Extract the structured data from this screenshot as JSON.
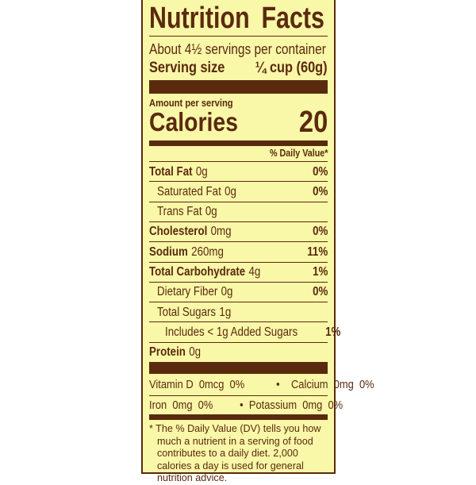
{
  "title": "Nutrition Facts",
  "servings_per_container": "About 4½ servings per container",
  "serving_size_label": "Serving size",
  "serving_size_value": "¼ cup (60g)",
  "amount_per_serving": "Amount per serving",
  "calories_label": "Calories",
  "calories_value": "20",
  "daily_value_header": "% Daily Value*",
  "nutrients": [
    {
      "name": "Total Fat",
      "amount": "0g",
      "dv": "0%",
      "bold": true,
      "indent": 0
    },
    {
      "name": "Saturated Fat",
      "amount": "0g",
      "dv": "0%",
      "bold": false,
      "indent": 1
    },
    {
      "name": "Trans Fat",
      "amount": "0g",
      "dv": "",
      "bold": false,
      "indent": 1
    },
    {
      "name": "Cholesterol",
      "amount": "0mg",
      "dv": "0%",
      "bold": true,
      "indent": 0
    },
    {
      "name": "Sodium",
      "amount": "260mg",
      "dv": "11%",
      "bold": true,
      "indent": 0
    },
    {
      "name": "Total Carbohydrate",
      "amount": "4g",
      "dv": "1%",
      "bold": true,
      "indent": 0
    },
    {
      "name": "Dietary Fiber",
      "amount": "0g",
      "dv": "0%",
      "bold": false,
      "indent": 1
    },
    {
      "name": "Total Sugars",
      "amount": "1g",
      "dv": "",
      "bold": false,
      "indent": 1
    },
    {
      "name": "Includes < 1g Added Sugars",
      "amount": "",
      "dv": "1%",
      "bold": false,
      "indent": 2
    },
    {
      "name": "Protein",
      "amount": "0g",
      "dv": "",
      "bold": true,
      "indent": 0
    }
  ],
  "vitamins": {
    "vitamin_d": "Vitamin D  0mcg  0%",
    "calcium": "•    Calcium  0mg  0%",
    "iron": "Iron  0mg  0%",
    "potassium": "•  Potassium  0mg  0%"
  },
  "footnote": "* The % Daily Value (DV) tells you how much a nutrient in a serving of food contributes to a daily diet. 2,000 calories a day is used for general nutrition advice.",
  "colors": {
    "background": "#f9f7a8",
    "ink": "#5a2a0e"
  }
}
